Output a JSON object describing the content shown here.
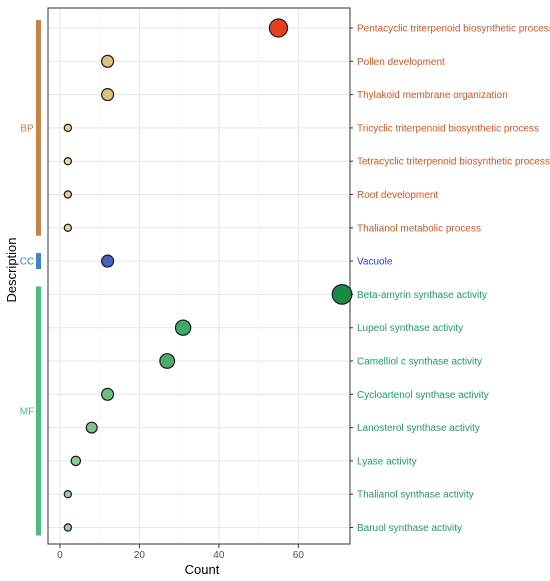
{
  "chart_data": {
    "type": "scatter",
    "xlabel": "Count",
    "ylabel": "Description",
    "xlim": [
      -3,
      73
    ],
    "x_ticks": [
      "0",
      "20",
      "40",
      "60"
    ],
    "x_tick_values": [
      0,
      20,
      40,
      60
    ],
    "grid": true,
    "groups": [
      {
        "name": "BP",
        "color": "#c8824a",
        "label_color": "#e07b39"
      },
      {
        "name": "CC",
        "color": "#3a86c8",
        "label_color": "#3a7fc0"
      },
      {
        "name": "MF",
        "color": "#4dbb7e",
        "label_color": "#4dbb7e"
      }
    ],
    "points": [
      {
        "label": "Pentacyclic triterpenoid biosynthetic process",
        "group": "BP",
        "count": 55,
        "fill": "#e8401c",
        "text_color": "#d9541e"
      },
      {
        "label": "Pollen development",
        "group": "BP",
        "count": 12,
        "fill": "#e0c07e",
        "text_color": "#d9541e"
      },
      {
        "label": "Thylakoid membrane organization",
        "group": "BP",
        "count": 12,
        "fill": "#e0c07e",
        "text_color": "#d9541e"
      },
      {
        "label": "Tricyclic triterpenoid biosynthetic process",
        "group": "BP",
        "count": 2,
        "fill": "#e8cf97",
        "text_color": "#d9541e"
      },
      {
        "label": "Tetracyclic triterpenoid biosynthetic process",
        "group": "BP",
        "count": 2,
        "fill": "#e8cf97",
        "text_color": "#d9541e"
      },
      {
        "label": "Root development",
        "group": "BP",
        "count": 2,
        "fill": "#e8cf97",
        "text_color": "#d9541e"
      },
      {
        "label": "Thalianol metabolic process",
        "group": "BP",
        "count": 2,
        "fill": "#e8cf97",
        "text_color": "#d9541e"
      },
      {
        "label": "Vacuole",
        "group": "CC",
        "count": 12,
        "fill": "#4662c4",
        "text_color": "#2f47b8"
      },
      {
        "label": "Beta-amyrin synthase activity",
        "group": "MF",
        "count": 71,
        "fill": "#1a8a45",
        "text_color": "#1f9a6a"
      },
      {
        "label": "Lupeol synthase activity",
        "group": "MF",
        "count": 31,
        "fill": "#3faa63",
        "text_color": "#1f9a6a"
      },
      {
        "label": "Camelliol c synthase activity",
        "group": "MF",
        "count": 27,
        "fill": "#4aae6a",
        "text_color": "#1f9a6a"
      },
      {
        "label": "Cycloartenol synthase activity",
        "group": "MF",
        "count": 12,
        "fill": "#6fbe7d",
        "text_color": "#1f9a6a"
      },
      {
        "label": "Lanosterol synthase activity",
        "group": "MF",
        "count": 8,
        "fill": "#7ec486",
        "text_color": "#1f9a6a"
      },
      {
        "label": "Lyase activity",
        "group": "MF",
        "count": 4,
        "fill": "#8acb90",
        "text_color": "#1f9a6a"
      },
      {
        "label": "Thalianol synthase activity",
        "group": "MF",
        "count": 2,
        "fill": "#96d09a",
        "text_color": "#1f9a6a"
      },
      {
        "label": "Baruol synthase activity",
        "group": "MF",
        "count": 2,
        "fill": "#96d09a",
        "text_color": "#1f9a6a"
      }
    ]
  }
}
